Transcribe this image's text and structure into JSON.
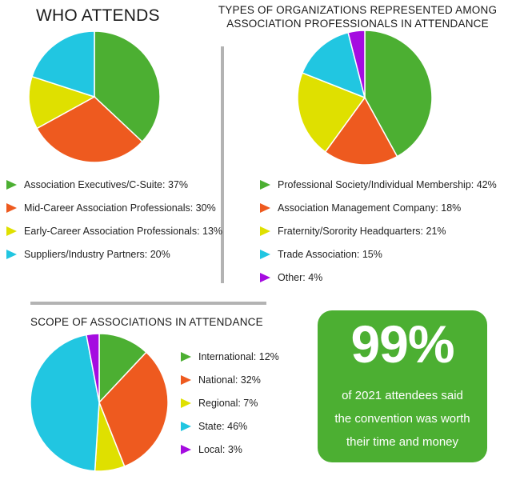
{
  "colors": {
    "green": "#4caf32",
    "orange": "#ee5a1f",
    "yellow": "#dfe000",
    "cyan": "#21c6e1",
    "purple": "#a50ce0",
    "stat_bg": "#4caf32"
  },
  "chart_data": [
    {
      "type": "pie",
      "title": "WHO ATTENDS",
      "categories": [
        "Association Executives/C-Suite",
        "Mid-Career Association Professionals",
        "Early-Career Association Professionals",
        "Suppliers/Industry Partners"
      ],
      "values": [
        37,
        30,
        13,
        20
      ],
      "labels": [
        "Association Executives/C-Suite: 37%",
        "Mid-Career Association Professionals: 30%",
        "Early-Career Association Professionals: 13%",
        "Suppliers/Industry Partners: 20%"
      ],
      "colors": [
        "#4caf32",
        "#ee5a1f",
        "#dfe000",
        "#21c6e1"
      ]
    },
    {
      "type": "pie",
      "title": "TYPES OF ORGANIZATIONS REPRESENTED AMONG ASSOCIATION PROFESSIONALS IN ATTENDANCE",
      "title_lines": [
        "TYPES OF ORGANIZATIONS REPRESENTED AMONG",
        "ASSOCIATION PROFESSIONALS IN ATTENDANCE"
      ],
      "categories": [
        "Professional Society/Individual Membership",
        "Association Management Company",
        "Fraternity/Sorority Headquarters",
        "Trade Association",
        "Other"
      ],
      "values": [
        42,
        18,
        21,
        15,
        4
      ],
      "labels": [
        "Professional Society/Individual Membership: 42%",
        "Association Management Company: 18%",
        "Fraternity/Sorority Headquarters: 21%",
        "Trade Association: 15%",
        "Other: 4%"
      ],
      "colors": [
        "#4caf32",
        "#ee5a1f",
        "#dfe000",
        "#21c6e1",
        "#a50ce0"
      ]
    },
    {
      "type": "pie",
      "title": "SCOPE OF ASSOCIATIONS IN ATTENDANCE",
      "categories": [
        "International",
        "National",
        "Regional",
        "State",
        "Local"
      ],
      "values": [
        12,
        32,
        7,
        46,
        3
      ],
      "labels": [
        "International: 12%",
        "National: 32%",
        "Regional: 7%",
        "State: 46%",
        "Local: 3%"
      ],
      "colors": [
        "#4caf32",
        "#ee5a1f",
        "#dfe000",
        "#21c6e1",
        "#a50ce0"
      ]
    }
  ],
  "stat": {
    "value": "99%",
    "lines": [
      "of 2021 attendees said",
      "the convention was worth",
      "their time and money"
    ]
  }
}
